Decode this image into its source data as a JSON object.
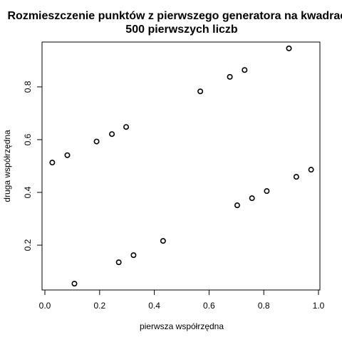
{
  "chart_data": {
    "type": "scatter",
    "title_line1": "Rozmieszczenie punktów z pierwszego generatora na kwadracie",
    "title_line2": "500 pierwszych liczb",
    "xlabel": "pierwsza współrzędna",
    "ylabel": "druga współrzędna",
    "xlim": [
      0.0,
      1.0
    ],
    "ylim": [
      0.03,
      0.97
    ],
    "x_ticks": [
      "0.0",
      "0.2",
      "0.4",
      "0.6",
      "0.8",
      "1.0"
    ],
    "y_ticks": [
      "0.2",
      "0.4",
      "0.6",
      "0.8"
    ],
    "grid": false,
    "marker": "open-circle",
    "points": [
      {
        "x": 0.027,
        "y": 0.513
      },
      {
        "x": 0.082,
        "y": 0.541
      },
      {
        "x": 0.108,
        "y": 0.054
      },
      {
        "x": 0.189,
        "y": 0.593
      },
      {
        "x": 0.245,
        "y": 0.621
      },
      {
        "x": 0.27,
        "y": 0.135
      },
      {
        "x": 0.297,
        "y": 0.648
      },
      {
        "x": 0.324,
        "y": 0.162
      },
      {
        "x": 0.432,
        "y": 0.216
      },
      {
        "x": 0.568,
        "y": 0.783
      },
      {
        "x": 0.676,
        "y": 0.838
      },
      {
        "x": 0.703,
        "y": 0.351
      },
      {
        "x": 0.73,
        "y": 0.864
      },
      {
        "x": 0.757,
        "y": 0.378
      },
      {
        "x": 0.811,
        "y": 0.405
      },
      {
        "x": 0.892,
        "y": 0.946
      },
      {
        "x": 0.919,
        "y": 0.459
      },
      {
        "x": 0.973,
        "y": 0.486
      }
    ]
  }
}
